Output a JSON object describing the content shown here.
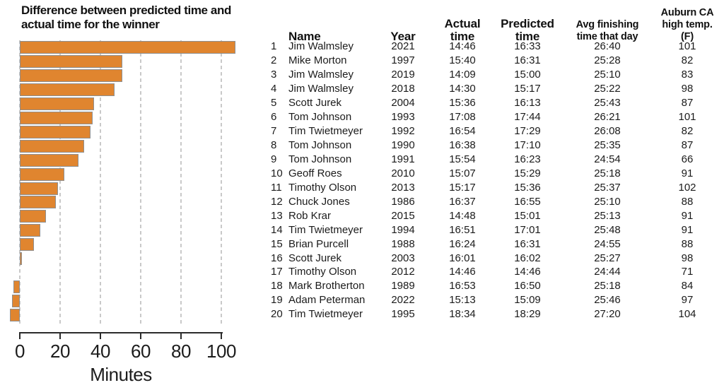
{
  "chart_data": [
    {
      "type": "bar",
      "orientation": "horizontal",
      "title": "Difference between predicted time and actual time for the winner",
      "title_lines": [
        "Difference between predicted time and",
        "actual time for the winner"
      ],
      "xlabel": "Minutes",
      "x_ticks": [
        0,
        20,
        40,
        60,
        80,
        100
      ],
      "xlim": [
        -8,
        112
      ],
      "grid": "dashed-vertical",
      "legend": "none",
      "bar_color": "#E0852F",
      "bar_border_color": "#8f8f8f",
      "categories": [
        "1",
        "2",
        "3",
        "4",
        "5",
        "6",
        "7",
        "8",
        "9",
        "10",
        "11",
        "12",
        "13",
        "14",
        "15",
        "16",
        "17",
        "18",
        "19",
        "20"
      ],
      "values": [
        107,
        51,
        51,
        47,
        37,
        36,
        35,
        32,
        29,
        22,
        19,
        18,
        13,
        10,
        7,
        1,
        0,
        -3,
        -4,
        -5
      ],
      "note": "Bars correspond to table rows 1-20 (predicted time minus actual time, minutes)"
    },
    {
      "type": "table",
      "columns": [
        "",
        "Name",
        "Year",
        "Actual\ntime",
        "Predicted\ntime",
        "Avg finishing\ntime that day",
        "Auburn CA\nhigh temp. (F)"
      ],
      "rows": [
        [
          "1",
          "Jim Walmsley",
          "2021",
          "14:46",
          "16:33",
          "26:40",
          "101"
        ],
        [
          "2",
          "Mike Morton",
          "1997",
          "15:40",
          "16:31",
          "25:28",
          "82"
        ],
        [
          "3",
          "Jim Walmsley",
          "2019",
          "14:09",
          "15:00",
          "25:10",
          "83"
        ],
        [
          "4",
          "Jim Walmsley",
          "2018",
          "14:30",
          "15:17",
          "25:22",
          "98"
        ],
        [
          "5",
          "Scott Jurek",
          "2004",
          "15:36",
          "16:13",
          "25:43",
          "87"
        ],
        [
          "6",
          "Tom Johnson",
          "1993",
          "17:08",
          "17:44",
          "26:21",
          "101"
        ],
        [
          "7",
          "Tim Twietmeyer",
          "1992",
          "16:54",
          "17:29",
          "26:08",
          "82"
        ],
        [
          "8",
          "Tom Johnson",
          "1990",
          "16:38",
          "17:10",
          "25:35",
          "87"
        ],
        [
          "9",
          "Tom Johnson",
          "1991",
          "15:54",
          "16:23",
          "24:54",
          "66"
        ],
        [
          "10",
          "Geoff Roes",
          "2010",
          "15:07",
          "15:29",
          "25:18",
          "91"
        ],
        [
          "11",
          "Timothy Olson",
          "2013",
          "15:17",
          "15:36",
          "25:37",
          "102"
        ],
        [
          "12",
          "Chuck Jones",
          "1986",
          "16:37",
          "16:55",
          "25:10",
          "88"
        ],
        [
          "13",
          "Rob Krar",
          "2015",
          "14:48",
          "15:01",
          "25:13",
          "91"
        ],
        [
          "14",
          "Tim Twietmeyer",
          "1994",
          "16:51",
          "17:01",
          "25:48",
          "91"
        ],
        [
          "15",
          "Brian Purcell",
          "1988",
          "16:24",
          "16:31",
          "24:55",
          "88"
        ],
        [
          "16",
          "Scott Jurek",
          "2003",
          "16:01",
          "16:02",
          "25:27",
          "98"
        ],
        [
          "17",
          "Timothy Olson",
          "2012",
          "14:46",
          "14:46",
          "24:44",
          "71"
        ],
        [
          "18",
          "Mark Brotherton",
          "1989",
          "16:53",
          "16:50",
          "25:18",
          "84"
        ],
        [
          "19",
          "Adam Peterman",
          "2022",
          "15:13",
          "15:09",
          "25:46",
          "97"
        ],
        [
          "20",
          "Tim Twietmeyer",
          "1995",
          "18:34",
          "18:29",
          "27:20",
          "104"
        ]
      ]
    }
  ]
}
